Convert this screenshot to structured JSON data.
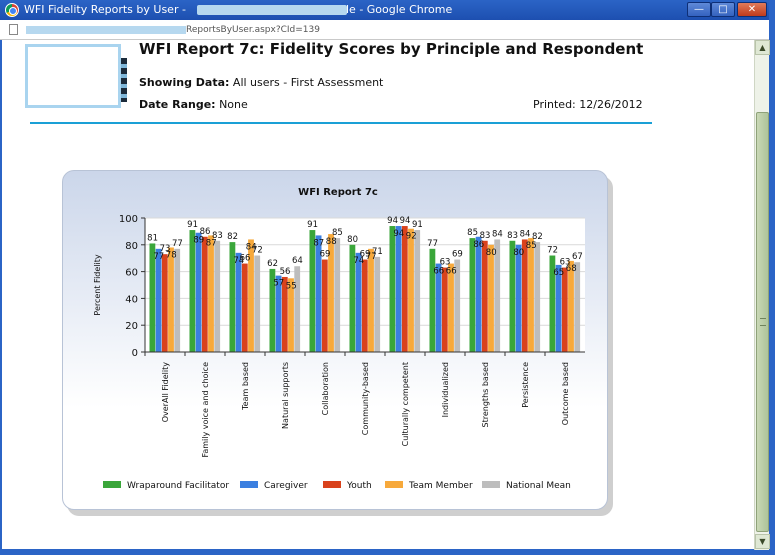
{
  "window": {
    "title_prefix": "WFI Fidelity Reports by User -",
    "title_suffix": "le - Google Chrome",
    "address_tail": "ReportsByUser.aspx?CId=139",
    "minimize": "—",
    "maximize": "□",
    "close": "✕"
  },
  "report": {
    "title": "WFI Report 7c: Fidelity Scores by Principle and Respondent",
    "showing_label": "Showing Data:",
    "showing_value": "All users - First Assessment",
    "date_label": "Date Range:",
    "date_value": "None",
    "printed_label": "Printed:",
    "printed_value": "12/26/2012"
  },
  "colors": {
    "accent_rule": "#1aa0d6",
    "Wraparound Facilitator": "#3aa63a",
    "Caregiver": "#3b7fe0",
    "Youth": "#d9421c",
    "Team Member": "#f7a93b",
    "National Mean": "#bdbdbd"
  },
  "chart_data": {
    "type": "bar",
    "title": "WFI Report 7c",
    "ylabel": "Percent Fidelity",
    "xlabel": "",
    "ylim": [
      0,
      100
    ],
    "yticks": [
      0,
      20,
      40,
      60,
      80,
      100
    ],
    "legend_position": "bottom",
    "categories": [
      "OverAll Fidelity",
      "Family voice and choice",
      "Team based",
      "Natural supports",
      "Collaboration",
      "Community-based",
      "Culturally competent",
      "Individualized",
      "Strengths based",
      "Persistence",
      "Outcome based"
    ],
    "series": [
      {
        "name": "Wraparound Facilitator",
        "values": [
          81,
          91,
          82,
          62,
          91,
          80,
          94,
          77,
          85,
          83,
          72
        ]
      },
      {
        "name": "Caregiver",
        "values": [
          77,
          89,
          74,
          57,
          87,
          74,
          94,
          66,
          86,
          80,
          65
        ]
      },
      {
        "name": "Youth",
        "values": [
          73,
          86,
          66,
          56,
          69,
          69,
          94,
          63,
          83,
          84,
          63
        ]
      },
      {
        "name": "Team Member",
        "values": [
          78,
          87,
          84,
          55,
          88,
          77,
          92,
          66,
          80,
          85,
          68
        ]
      },
      {
        "name": "National Mean",
        "values": [
          77,
          83,
          72,
          64,
          85,
          71,
          91,
          69,
          84,
          82,
          67
        ]
      }
    ]
  }
}
